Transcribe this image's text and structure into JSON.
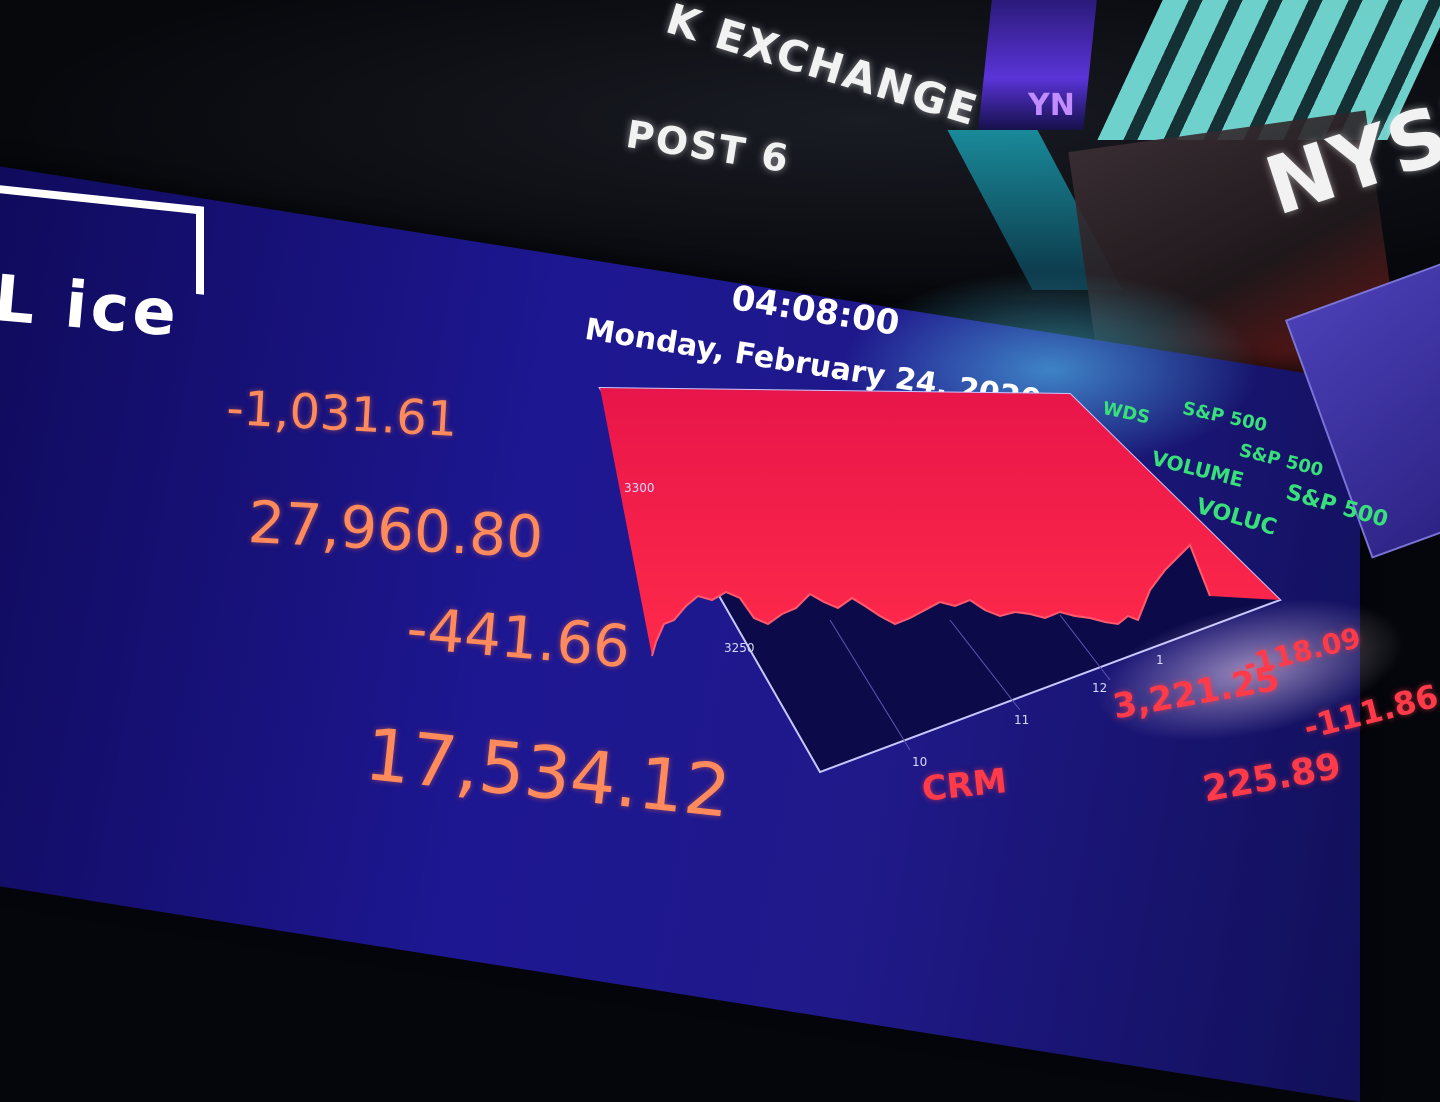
{
  "scene": {
    "exchange_sign": "K EXCHANGE",
    "post_sign": "POST 6",
    "nyse_logo": "NYSE",
    "purple_sign_text": "YN"
  },
  "board": {
    "logo": "L ice",
    "time": "04:08:00",
    "date": "Monday, February 24, 2020",
    "stats": {
      "change": "-1,031.61",
      "level": "27,960.80",
      "sp_change": "-441.66",
      "nasdaq": "17,534.12"
    },
    "chart": {
      "y_top_label": "3300",
      "y_bottom_label": "3250",
      "x_labels": [
        "10",
        "11",
        "12",
        "1"
      ]
    },
    "tickers_green": [
      "WDS",
      "S&P 500",
      "VOLUME",
      "S&P 500",
      "VOLUC",
      "S&P 500"
    ],
    "tickers_red": [
      "3,221.25",
      "-118.09",
      "-111.86",
      "225.89",
      "CRM"
    ],
    "colors": {
      "board": "#1d1792",
      "chart_fill": "#e8154a",
      "stat_text": "#ff8a5c",
      "ticker_green": "#38e07a",
      "ticker_red": "#ff3b4a"
    }
  }
}
